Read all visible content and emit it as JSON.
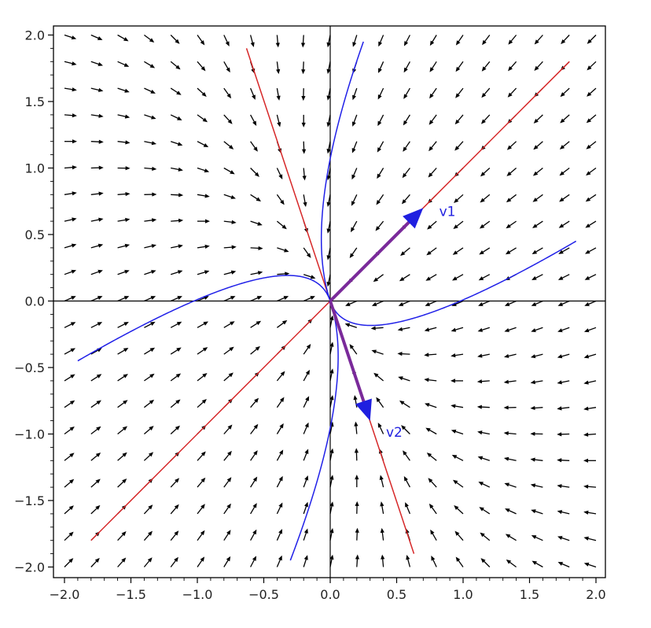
{
  "chart_data": {
    "type": "vector-field",
    "title": "",
    "xlabel": "",
    "ylabel": "",
    "xlim": [
      -2.08,
      2.08
    ],
    "ylim": [
      -2.08,
      2.08
    ],
    "grid": false,
    "x_ticks": [
      "−2.0",
      "−1.5",
      "−1.0",
      "−0.5",
      "0.0",
      "0.5",
      "1.0",
      "1.5",
      "2.0"
    ],
    "y_ticks": [
      "2.0",
      "1.5",
      "1.0",
      "0.5",
      "0.0",
      "−0.5",
      "−1.0",
      "−1.5",
      "−2.0"
    ],
    "tick_values": [
      -2,
      -1.5,
      -1,
      -0.5,
      0,
      0.5,
      1,
      1.5,
      2
    ],
    "minor_tick_step": 0.1,
    "field": {
      "matrix": [
        [
          -1.75,
          -0.25
        ],
        [
          -0.75,
          -1.25
        ]
      ],
      "grid_step": 0.2,
      "range": [
        -2,
        2
      ],
      "color": "#000000"
    },
    "eigenlines": [
      {
        "from": [
          -1.8,
          -1.8
        ],
        "to": [
          1.8,
          1.8
        ],
        "color": "#d62728"
      },
      {
        "from": [
          -0.63,
          1.9
        ],
        "to": [
          0.63,
          -1.9
        ],
        "color": "#d62728"
      }
    ],
    "eigenvectors": [
      {
        "label": "v1",
        "tip": [
          0.7,
          0.7
        ],
        "color": "#1f1fe0"
      },
      {
        "label": "v2",
        "tip": [
          0.3,
          -0.9
        ],
        "color": "#1f1fe0"
      }
    ],
    "trajectories": {
      "color": "#2020e8",
      "initial_points": [
        [
          0.25,
          1.95
        ],
        [
          1.85,
          0.45
        ],
        [
          -1.9,
          -0.45
        ],
        [
          -0.3,
          -1.95
        ]
      ]
    }
  }
}
